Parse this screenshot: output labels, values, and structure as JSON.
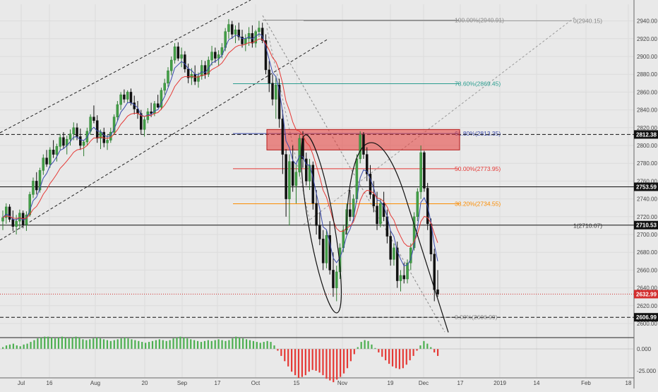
{
  "chart_data": {
    "type": "candlestick",
    "title": "",
    "ylim": [
      2590,
      2955
    ],
    "y_ticks": [
      2600,
      2620,
      2640,
      2660,
      2680,
      2700,
      2720,
      2740,
      2760,
      2780,
      2800,
      2820,
      2840,
      2860,
      2880,
      2900,
      2920,
      2940
    ],
    "x_ticks": [
      "Jul",
      "16",
      "Aug",
      "20",
      "Sep",
      "17",
      "Oct",
      "15",
      "Nov",
      "19",
      "Dec",
      "17",
      "2019",
      "14",
      "Feb",
      "18"
    ],
    "fibonacci": [
      {
        "label": "100.00%(2940.91)",
        "value": 2940.91,
        "color": "#888888"
      },
      {
        "label": "78.60%(2869.45)",
        "value": 2869.45,
        "color": "#2a9d8f"
      },
      {
        "label": "61.80%(2813.35)",
        "value": 2813.35,
        "color": "#3949ab"
      },
      {
        "label": "50.00%(2773.95)",
        "value": 2773.95,
        "color": "#e53935"
      },
      {
        "label": "38.20%(2734.55)",
        "value": 2734.55,
        "color": "#fb8c00"
      },
      {
        "label": "0.00%(2606.99)",
        "value": 2606.99,
        "color": "#888888"
      }
    ],
    "extension_labels": [
      {
        "label": "0(2940.15)",
        "value": 2940.15
      },
      {
        "label": "1(2710.07)",
        "value": 2710.07
      }
    ],
    "horizontal_levels": [
      {
        "label": "2812.38",
        "value": 2812.38,
        "style": "dashed",
        "tag_bg": "#111111",
        "tag_fg": "#ffffff"
      },
      {
        "label": "2753.59",
        "value": 2753.59,
        "style": "solid",
        "tag_bg": "#111111",
        "tag_fg": "#ffffff"
      },
      {
        "label": "2710.53",
        "value": 2710.53,
        "style": "solid",
        "tag_bg": "#111111",
        "tag_fg": "#ffffff"
      },
      {
        "label": "2632.99",
        "value": 2632.99,
        "style": "dotted",
        "tag_bg": "#d32f2f",
        "tag_fg": "#ffffff"
      },
      {
        "label": "2606.99",
        "value": 2606.99,
        "style": "dashed",
        "tag_bg": "#111111",
        "tag_fg": "#ffffff"
      }
    ],
    "zone": {
      "y_top": 2818,
      "y_bottom": 2795
    },
    "candles": [
      [
        2715,
        2727,
        2705,
        2719
      ],
      [
        2719,
        2735,
        2712,
        2731
      ],
      [
        2731,
        2734,
        2714,
        2717
      ],
      [
        2717,
        2727,
        2704,
        2709
      ],
      [
        2709,
        2722,
        2700,
        2715
      ],
      [
        2715,
        2728,
        2706,
        2724
      ],
      [
        2724,
        2727,
        2707,
        2711
      ],
      [
        2711,
        2726,
        2704,
        2722
      ],
      [
        2722,
        2748,
        2720,
        2745
      ],
      [
        2745,
        2764,
        2741,
        2760
      ],
      [
        2760,
        2770,
        2745,
        2750
      ],
      [
        2750,
        2775,
        2747,
        2772
      ],
      [
        2772,
        2790,
        2767,
        2786
      ],
      [
        2786,
        2795,
        2776,
        2779
      ],
      [
        2779,
        2798,
        2775,
        2795
      ],
      [
        2795,
        2806,
        2786,
        2790
      ],
      [
        2790,
        2802,
        2782,
        2799
      ],
      [
        2799,
        2813,
        2795,
        2809
      ],
      [
        2809,
        2815,
        2796,
        2800
      ],
      [
        2800,
        2811,
        2790,
        2807
      ],
      [
        2807,
        2818,
        2800,
        2813
      ],
      [
        2813,
        2826,
        2806,
        2820
      ],
      [
        2820,
        2825,
        2806,
        2810
      ],
      [
        2810,
        2819,
        2795,
        2800
      ],
      [
        2800,
        2806,
        2788,
        2804
      ],
      [
        2804,
        2820,
        2800,
        2816
      ],
      [
        2816,
        2835,
        2812,
        2832
      ],
      [
        2832,
        2845,
        2825,
        2828
      ],
      [
        2828,
        2834,
        2803,
        2808
      ],
      [
        2808,
        2818,
        2796,
        2815
      ],
      [
        2815,
        2820,
        2798,
        2803
      ],
      [
        2803,
        2812,
        2795,
        2806
      ],
      [
        2806,
        2820,
        2803,
        2815
      ],
      [
        2815,
        2835,
        2812,
        2832
      ],
      [
        2832,
        2850,
        2828,
        2846
      ],
      [
        2846,
        2860,
        2840,
        2857
      ],
      [
        2857,
        2863,
        2848,
        2852
      ],
      [
        2852,
        2862,
        2848,
        2860
      ],
      [
        2860,
        2864,
        2845,
        2848
      ],
      [
        2848,
        2856,
        2835,
        2841
      ],
      [
        2841,
        2850,
        2830,
        2836
      ],
      [
        2836,
        2840,
        2812,
        2818
      ],
      [
        2818,
        2832,
        2810,
        2829
      ],
      [
        2829,
        2842,
        2825,
        2838
      ],
      [
        2838,
        2848,
        2832,
        2836
      ],
      [
        2836,
        2850,
        2833,
        2847
      ],
      [
        2847,
        2857,
        2842,
        2843
      ],
      [
        2843,
        2865,
        2840,
        2862
      ],
      [
        2862,
        2875,
        2857,
        2870
      ],
      [
        2870,
        2888,
        2866,
        2884
      ],
      [
        2884,
        2900,
        2879,
        2896
      ],
      [
        2896,
        2915,
        2892,
        2911
      ],
      [
        2911,
        2916,
        2895,
        2898
      ],
      [
        2898,
        2910,
        2888,
        2902
      ],
      [
        2902,
        2906,
        2882,
        2886
      ],
      [
        2886,
        2892,
        2870,
        2876
      ],
      [
        2876,
        2887,
        2868,
        2880
      ],
      [
        2880,
        2890,
        2868,
        2872
      ],
      [
        2872,
        2882,
        2865,
        2878
      ],
      [
        2878,
        2896,
        2874,
        2890
      ],
      [
        2890,
        2895,
        2875,
        2880
      ],
      [
        2880,
        2900,
        2877,
        2896
      ],
      [
        2896,
        2912,
        2890,
        2905
      ],
      [
        2905,
        2910,
        2893,
        2898
      ],
      [
        2898,
        2907,
        2890,
        2902
      ],
      [
        2902,
        2915,
        2898,
        2910
      ],
      [
        2910,
        2932,
        2906,
        2928
      ],
      [
        2928,
        2942,
        2920,
        2936
      ],
      [
        2936,
        2940,
        2920,
        2925
      ],
      [
        2925,
        2935,
        2915,
        2930
      ],
      [
        2930,
        2938,
        2918,
        2922
      ],
      [
        2922,
        2930,
        2910,
        2914
      ],
      [
        2914,
        2925,
        2906,
        2920
      ],
      [
        2920,
        2933,
        2912,
        2926
      ],
      [
        2926,
        2935,
        2910,
        2915
      ],
      [
        2915,
        2930,
        2910,
        2928
      ],
      [
        2928,
        2940,
        2922,
        2932
      ],
      [
        2932,
        2938,
        2915,
        2918
      ],
      [
        2918,
        2925,
        2880,
        2885
      ],
      [
        2885,
        2895,
        2860,
        2870
      ],
      [
        2870,
        2880,
        2845,
        2852
      ],
      [
        2852,
        2878,
        2830,
        2868
      ],
      [
        2868,
        2875,
        2820,
        2830
      ],
      [
        2830,
        2840,
        2768,
        2790
      ],
      [
        2790,
        2796,
        2720,
        2740
      ],
      [
        2740,
        2790,
        2710,
        2782
      ],
      [
        2782,
        2800,
        2748,
        2755
      ],
      [
        2755,
        2780,
        2735,
        2770
      ],
      [
        2770,
        2812,
        2765,
        2808
      ],
      [
        2808,
        2816,
        2775,
        2785
      ],
      [
        2785,
        2792,
        2755,
        2760
      ],
      [
        2760,
        2785,
        2750,
        2778
      ],
      [
        2778,
        2782,
        2728,
        2735
      ],
      [
        2735,
        2750,
        2700,
        2710
      ],
      [
        2710,
        2725,
        2688,
        2695
      ],
      [
        2695,
        2705,
        2660,
        2668
      ],
      [
        2668,
        2705,
        2662,
        2699
      ],
      [
        2699,
        2715,
        2655,
        2660
      ],
      [
        2660,
        2680,
        2630,
        2640
      ],
      [
        2640,
        2665,
        2625,
        2658
      ],
      [
        2658,
        2690,
        2650,
        2685
      ],
      [
        2685,
        2710,
        2680,
        2705
      ],
      [
        2705,
        2735,
        2700,
        2728
      ],
      [
        2728,
        2750,
        2715,
        2720
      ],
      [
        2720,
        2745,
        2715,
        2740
      ],
      [
        2740,
        2790,
        2736,
        2785
      ],
      [
        2785,
        2816,
        2780,
        2812
      ],
      [
        2812,
        2815,
        2785,
        2790
      ],
      [
        2790,
        2798,
        2760,
        2768
      ],
      [
        2768,
        2778,
        2740,
        2745
      ],
      [
        2745,
        2760,
        2725,
        2732
      ],
      [
        2732,
        2748,
        2705,
        2712
      ],
      [
        2712,
        2740,
        2708,
        2735
      ],
      [
        2735,
        2748,
        2715,
        2720
      ],
      [
        2720,
        2728,
        2690,
        2698
      ],
      [
        2698,
        2705,
        2665,
        2672
      ],
      [
        2672,
        2690,
        2665,
        2685
      ],
      [
        2685,
        2692,
        2640,
        2648
      ],
      [
        2648,
        2660,
        2636,
        2654
      ],
      [
        2654,
        2668,
        2645,
        2650
      ],
      [
        2650,
        2672,
        2645,
        2668
      ],
      [
        2668,
        2690,
        2660,
        2685
      ],
      [
        2685,
        2725,
        2682,
        2720
      ],
      [
        2720,
        2752,
        2715,
        2748
      ],
      [
        2748,
        2800,
        2740,
        2792
      ],
      [
        2792,
        2794,
        2748,
        2752
      ],
      [
        2752,
        2758,
        2705,
        2712
      ],
      [
        2712,
        2718,
        2670,
        2678
      ],
      [
        2678,
        2684,
        2625,
        2638
      ],
      [
        2638,
        2660,
        2630,
        2633
      ]
    ],
    "oscillator": {
      "ylabels": [
        "0.000",
        "-25.000"
      ],
      "range": [
        -45,
        25
      ],
      "values": [
        2,
        4,
        5,
        6,
        4,
        3,
        5,
        6,
        8,
        10,
        12,
        13,
        14,
        14,
        13,
        12,
        13,
        14,
        13,
        12,
        13,
        14,
        13,
        11,
        10,
        11,
        12,
        13,
        12,
        11,
        10,
        9,
        10,
        11,
        12,
        13,
        12,
        11,
        10,
        9,
        8,
        7,
        8,
        9,
        10,
        11,
        10,
        9,
        10,
        12,
        13,
        14,
        13,
        12,
        11,
        10,
        9,
        8,
        9,
        10,
        9,
        10,
        11,
        10,
        9,
        10,
        12,
        14,
        13,
        12,
        11,
        10,
        9,
        8,
        7,
        8,
        9,
        8,
        4,
        -2,
        -8,
        -14,
        -20,
        -26,
        -30,
        -33,
        -32,
        -30,
        -26,
        -24,
        -25,
        -27,
        -30,
        -34,
        -36,
        -38,
        -35,
        -32,
        -28,
        -22,
        -14,
        -6,
        2,
        8,
        10,
        9,
        5,
        1,
        -4,
        -9,
        -13,
        -17,
        -20,
        -22,
        -23,
        -22,
        -18,
        -13,
        -8,
        -2,
        4,
        9,
        6,
        2,
        -4,
        -8
      ]
    }
  }
}
